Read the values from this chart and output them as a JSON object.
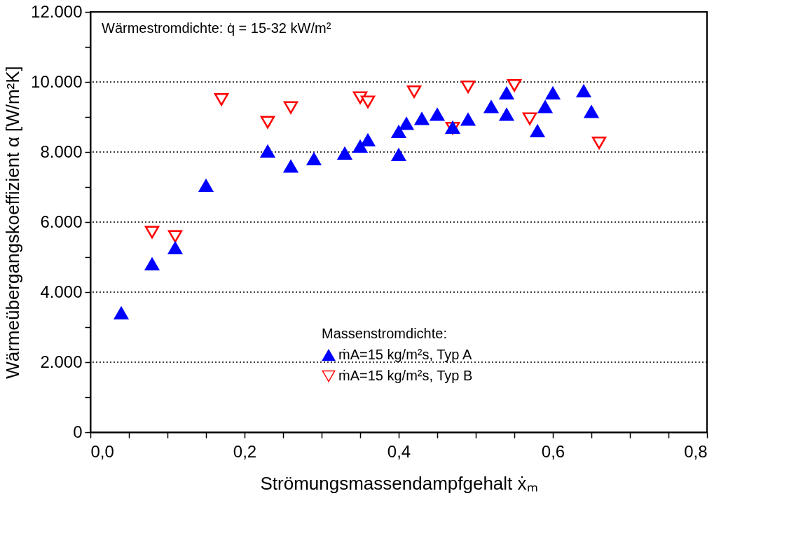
{
  "chart_data": {
    "type": "scatter",
    "xlabel": "Strömungsmassendampfgehalt ẋₘ",
    "ylabel": "Wärmeübergangskoeffizient α [W/m²K]",
    "legend_title": "Massenstromdichte:",
    "legend": "bottom right",
    "annotations": [
      "Wärmestromdichte: q̇ = 15-32 kW/m²"
    ],
    "xlim": [
      0,
      0.8
    ],
    "xticks": [
      {
        "value": 0,
        "label": "0,0"
      },
      {
        "value": 0.05,
        "label": null
      },
      {
        "value": 0.1,
        "label": null
      },
      {
        "value": 0.15,
        "label": null
      },
      {
        "value": 0.2,
        "label": "0,2"
      },
      {
        "value": 0.25,
        "label": null
      },
      {
        "value": 0.3,
        "label": null
      },
      {
        "value": 0.35,
        "label": null
      },
      {
        "value": 0.4,
        "label": "0,4"
      },
      {
        "value": 0.45,
        "label": null
      },
      {
        "value": 0.5,
        "label": null
      },
      {
        "value": 0.55,
        "label": null
      },
      {
        "value": 0.6,
        "label": "0,6"
      },
      {
        "value": 0.65,
        "label": null
      },
      {
        "value": 0.7,
        "label": null
      },
      {
        "value": 0.75,
        "label": null
      },
      {
        "value": 0.8,
        "label": "0,8"
      }
    ],
    "ylim": [
      0,
      12000
    ],
    "yticks": [
      0,
      {
        "value": 1000,
        "label": null
      },
      {
        "value": 2000,
        "label": "2.000"
      },
      {
        "value": 3000,
        "label": null
      },
      {
        "value": 4000,
        "label": "4.000"
      },
      {
        "value": 5000,
        "label": null
      },
      {
        "value": 6000,
        "label": "6.000"
      },
      {
        "value": 7000,
        "label": null
      },
      {
        "value": 8000,
        "label": "8.000"
      },
      {
        "value": 9000,
        "label": null
      },
      {
        "value": 10000,
        "label": "10.000"
      },
      {
        "value": 11000,
        "label": null
      },
      {
        "value": 12000,
        "label": "12.000"
      }
    ],
    "grid": "y",
    "marker": "triangle",
    "series": [
      {
        "name": "ṁA=15 kg/m²s, Typ A",
        "color": "#0000ff",
        "x": [
          0.04,
          0.08,
          0.11,
          0.15,
          0.23,
          0.26,
          0.29,
          0.33,
          0.35,
          0.36,
          0.4,
          0.4,
          0.41,
          0.43,
          0.45,
          0.47,
          0.49,
          0.52,
          0.54,
          0.54,
          0.58,
          0.59,
          0.6,
          0.64,
          0.65
        ],
        "values": [
          3400,
          4800,
          5260,
          7040,
          8020,
          7590,
          7800,
          7960,
          8160,
          8340,
          8580,
          7920,
          8810,
          8950,
          9070,
          8700,
          8930,
          9290,
          9680,
          9070,
          8600,
          9290,
          9680,
          9740,
          9150
        ]
      },
      {
        "name": "ṁA=15 kg/m²s, Typ B",
        "color": "#ff0000",
        "x": [
          0.08,
          0.11,
          0.17,
          0.23,
          0.26,
          0.35,
          0.36,
          0.42,
          0.47,
          0.49,
          0.55,
          0.57,
          0.66
        ],
        "values": [
          5710,
          5590,
          9500,
          8850,
          9270,
          9550,
          9430,
          9720,
          8680,
          9860,
          9900,
          8950,
          8260
        ]
      }
    ]
  }
}
